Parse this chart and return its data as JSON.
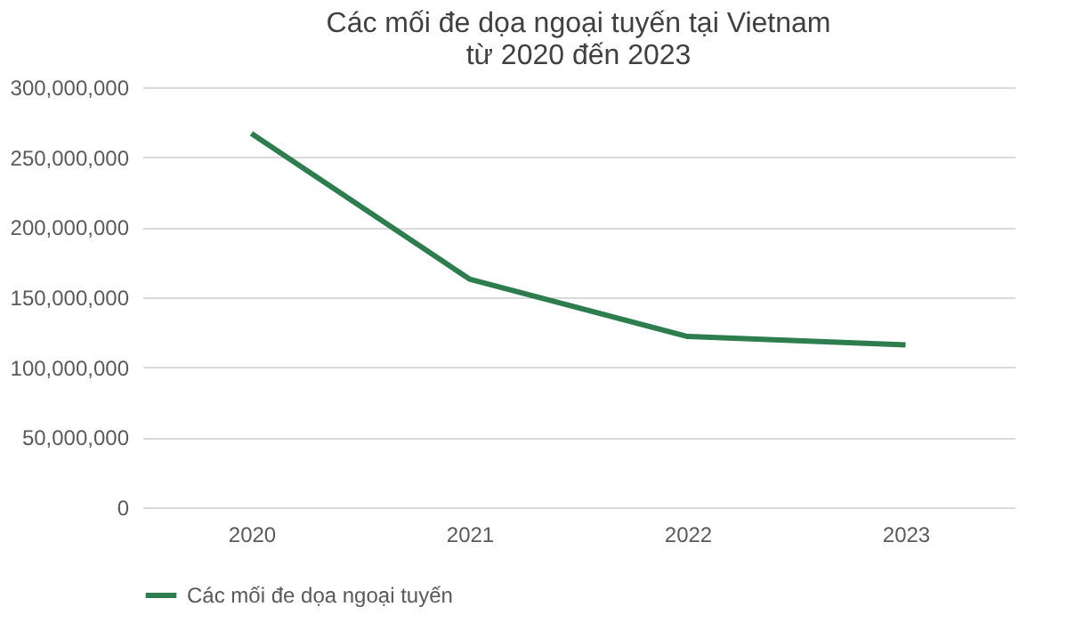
{
  "chart_data": {
    "type": "line",
    "title": [
      "Các mối đe dọa ngoại tuyến tại Vietnam",
      "từ 2020 đến 2023"
    ],
    "categories": [
      "2020",
      "2021",
      "2022",
      "2023"
    ],
    "series": [
      {
        "name": "Các mối đe dọa ngoại tuyến",
        "color": "#2e7d4f",
        "values": [
          267000000,
          163000000,
          122000000,
          116000000
        ]
      }
    ],
    "ylim": [
      0,
      300000000
    ],
    "yticks": [
      0,
      {
        "value": 50000000,
        "label": "50,000,000"
      },
      {
        "value": 100000000,
        "label": "100,000,000"
      },
      {
        "value": 150000000,
        "label": "150,000,000"
      },
      {
        "value": 200000000,
        "label": "200,000,000"
      },
      {
        "value": 250000000,
        "label": "250,000,000"
      },
      {
        "value": 300000000,
        "label": "300,000,000"
      }
    ],
    "grid": "y",
    "legend": "bottom",
    "marker": "none",
    "line_style": "solid"
  }
}
